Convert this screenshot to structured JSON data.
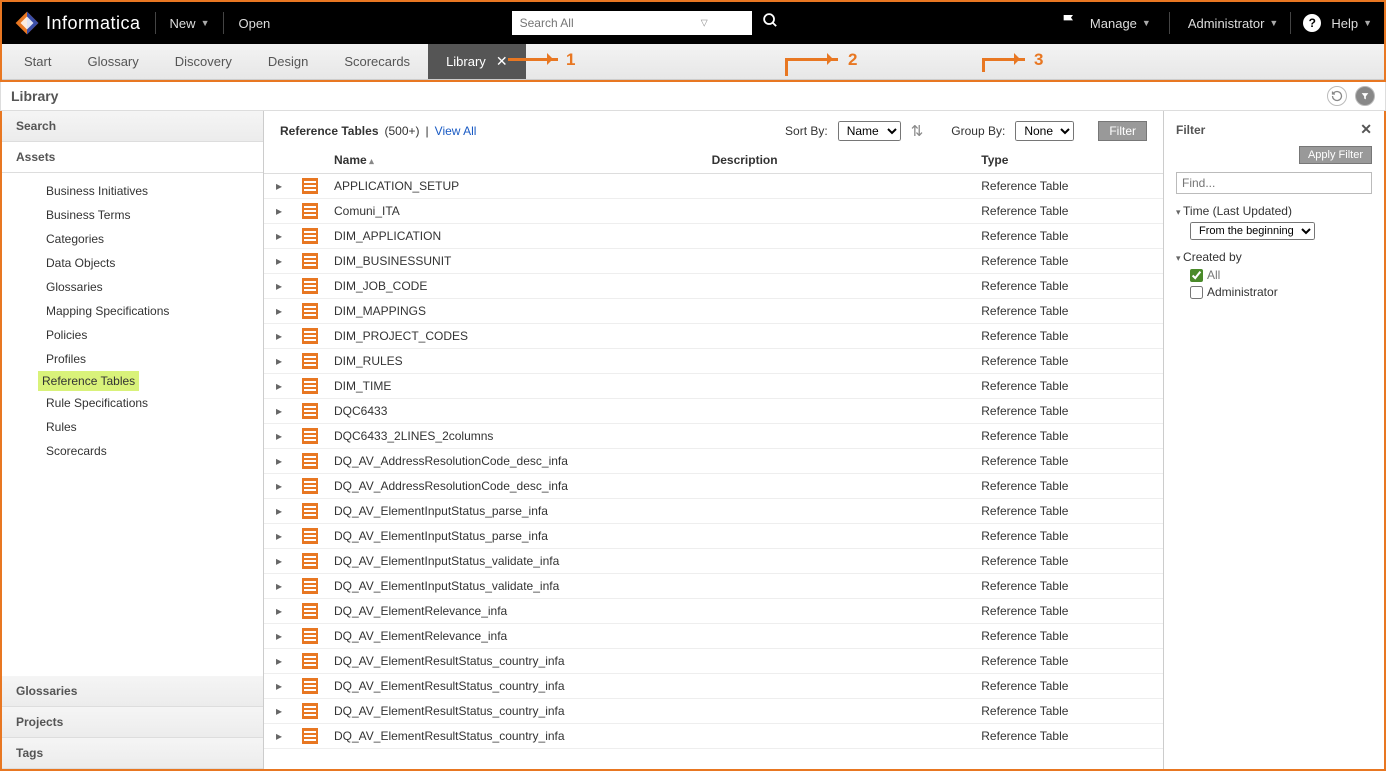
{
  "brand": "Informatica",
  "topbar": {
    "new": "New",
    "open": "Open",
    "search_placeholder": "Search All",
    "manage": "Manage",
    "admin": "Administrator",
    "help": "Help"
  },
  "tabs": [
    "Start",
    "Glossary",
    "Discovery",
    "Design",
    "Scorecards",
    "Library"
  ],
  "active_tab": "Library",
  "annotations": {
    "a1": "1",
    "a2": "2",
    "a3": "3"
  },
  "page_title": "Library",
  "sidebar": {
    "sections_top": [
      "Search",
      "Assets"
    ],
    "items": [
      "Business Initiatives",
      "Business Terms",
      "Categories",
      "Data Objects",
      "Glossaries",
      "Mapping Specifications",
      "Policies",
      "Profiles",
      "Reference Tables",
      "Rule Specifications",
      "Rules",
      "Scorecards"
    ],
    "selected": "Reference Tables",
    "sections_bottom": [
      "Glossaries",
      "Projects",
      "Tags"
    ]
  },
  "list": {
    "title_prefix": "Reference Tables",
    "count": "(500+)",
    "view_all": "View All",
    "sort_by_label": "Sort By:",
    "sort_by_value": "Name",
    "group_by_label": "Group By:",
    "group_by_value": "None",
    "filter_btn": "Filter",
    "columns": [
      "Name",
      "Description",
      "Type"
    ],
    "type_value": "Reference Table",
    "rows": [
      "APPLICATION_SETUP",
      "Comuni_ITA",
      "DIM_APPLICATION",
      "DIM_BUSINESSUNIT",
      "DIM_JOB_CODE",
      "DIM_MAPPINGS",
      "DIM_PROJECT_CODES",
      "DIM_RULES",
      "DIM_TIME",
      "DQC6433",
      "DQC6433_2LINES_2columns",
      "DQ_AV_AddressResolutionCode_desc_infa",
      "DQ_AV_AddressResolutionCode_desc_infa",
      "DQ_AV_ElementInputStatus_parse_infa",
      "DQ_AV_ElementInputStatus_parse_infa",
      "DQ_AV_ElementInputStatus_validate_infa",
      "DQ_AV_ElementInputStatus_validate_infa",
      "DQ_AV_ElementRelevance_infa",
      "DQ_AV_ElementRelevance_infa",
      "DQ_AV_ElementResultStatus_country_infa",
      "DQ_AV_ElementResultStatus_country_infa",
      "DQ_AV_ElementResultStatus_country_infa",
      "DQ_AV_ElementResultStatus_country_infa"
    ]
  },
  "filter": {
    "title": "Filter",
    "apply": "Apply Filter",
    "find_placeholder": "Find...",
    "time_label": "Time (Last Updated)",
    "time_value": "From the beginning",
    "created_label": "Created by",
    "all": "All",
    "admin": "Administrator"
  },
  "colors": {
    "accent": "#e87722",
    "highlight": "#d9f27a"
  }
}
